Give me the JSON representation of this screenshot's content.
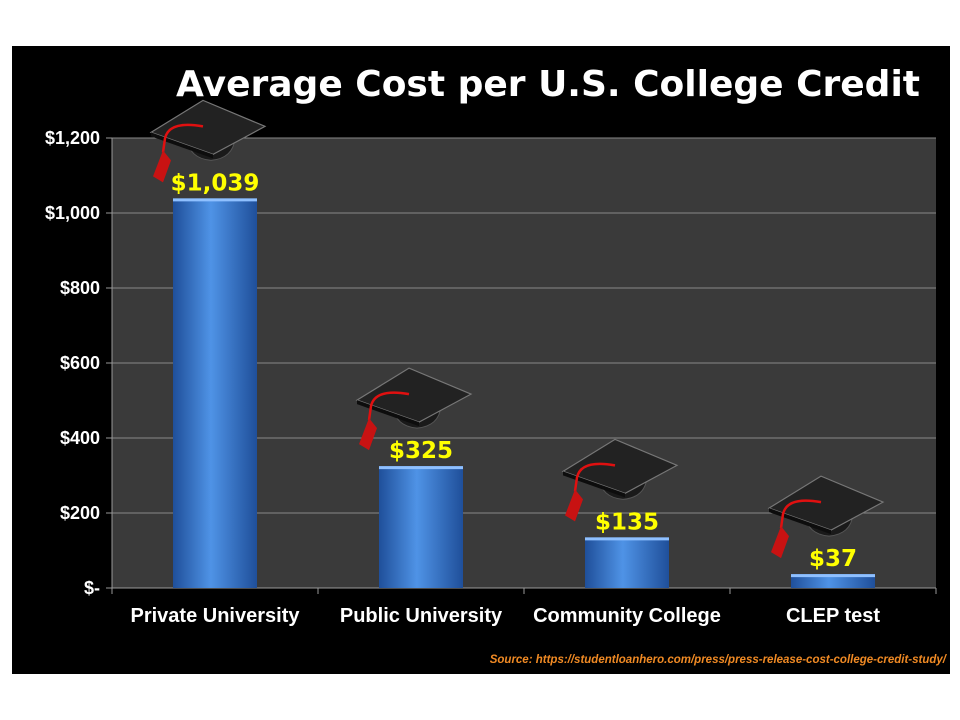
{
  "chart_data": {
    "type": "bar",
    "title": "Average Cost per U.S. College Credit",
    "categories": [
      "Private University",
      "Public University",
      "Community College",
      "CLEP test"
    ],
    "values": [
      1039,
      325,
      135,
      37
    ],
    "value_labels": [
      "$1,039",
      "$325",
      "$135",
      "$37"
    ],
    "ylim": [
      0,
      1200
    ],
    "yticks": [
      0,
      200,
      400,
      600,
      800,
      1000,
      1200
    ],
    "ytick_labels": [
      "$-",
      "$200",
      "$400",
      "$600",
      "$800",
      "$1,000",
      "$1,200"
    ],
    "xlabel": "",
    "ylabel": "",
    "grid": true,
    "source": "Source: https://studentloanhero.com/press/press-release-cost-college-credit-study/",
    "colors": {
      "background": "#000000",
      "plot_area": "#3a3a3a",
      "bar": "#3d7fd6",
      "value_label": "#ffff00",
      "source": "#f08a24",
      "grid": "#888888"
    },
    "bar_icon": "graduation-cap-icon"
  }
}
